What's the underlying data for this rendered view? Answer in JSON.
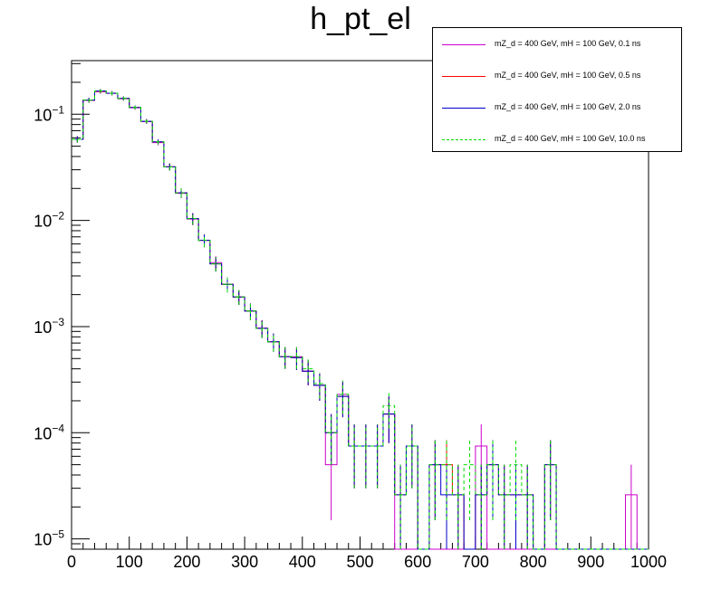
{
  "chart_data": {
    "type": "histogram",
    "title": "h_pt_el",
    "xlabel": "",
    "ylabel": "",
    "xlim": [
      0,
      1000
    ],
    "ylim": [
      8e-06,
      0.32
    ],
    "yscale": "log",
    "bin_width": 20,
    "x_ticks": [
      "0",
      "100",
      "200",
      "300",
      "400",
      "500",
      "600",
      "700",
      "800",
      "900",
      "1000"
    ],
    "y_ticks": [
      {
        "value": 1e-05,
        "mantissa": "10",
        "exp": "−5"
      },
      {
        "value": 0.0001,
        "mantissa": "10",
        "exp": "−4"
      },
      {
        "value": 0.001,
        "mantissa": "10",
        "exp": "−3"
      },
      {
        "value": 0.01,
        "mantissa": "10",
        "exp": "−2"
      },
      {
        "value": 0.1,
        "mantissa": "10",
        "exp": "−1"
      }
    ],
    "legend_position": "top-right",
    "series": [
      {
        "name": "mZ_d = 400 GeV, mH = 100 GeV, 0.1 ns",
        "color": "#cc00cc",
        "dash": "solid",
        "values": [
          0.058,
          0.135,
          0.163,
          0.157,
          0.14,
          0.115,
          0.085,
          0.054,
          0.032,
          0.018,
          0.0103,
          0.0065,
          0.004,
          0.0025,
          0.0019,
          0.0014,
          0.00097,
          0.00072,
          0.00052,
          0.00052,
          0.00038,
          0.00028,
          5e-05,
          0.00023,
          7.5e-05,
          7.5e-05,
          7.5e-05,
          0.00015,
          0,
          0,
          0,
          0,
          0,
          0,
          0,
          7.5e-05,
          0,
          0,
          0,
          0,
          0,
          0,
          0,
          0,
          0,
          0,
          0,
          0,
          2.6e-05,
          0
        ],
        "errors": [
          0.004,
          0.007,
          0.007,
          0.007,
          0.006,
          0.005,
          0.004,
          0.003,
          0.0025,
          0.0018,
          0.0013,
          0.0009,
          0.0006,
          0.0004,
          0.0003,
          0.00025,
          0.00018,
          0.00014,
          0.00012,
          0.00012,
          0.0001,
          8e-05,
          3.5e-05,
          8e-05,
          4.5e-05,
          4.5e-05,
          4.5e-05,
          7e-05,
          0,
          0,
          0,
          0,
          0,
          0,
          0,
          4.5e-05,
          0,
          0,
          0,
          0,
          0,
          0,
          0,
          0,
          0,
          0,
          0,
          0,
          2.4e-05,
          0
        ]
      },
      {
        "name": "mZ_d = 400 GeV, mH = 100 GeV, 0.5 ns",
        "color": "#ff0000",
        "dash": "solid",
        "values": [
          0.058,
          0.136,
          0.165,
          0.158,
          0.141,
          0.116,
          0.086,
          0.055,
          0.032,
          0.0182,
          0.0104,
          0.0065,
          0.0039,
          0.0025,
          0.0019,
          0.0014,
          0.00096,
          0.00072,
          0.00052,
          0.00051,
          0.00038,
          0.00028,
          0.0001,
          0.00022,
          7.5e-05,
          7.5e-05,
          7.5e-05,
          0.00015,
          2.6e-05,
          7.5e-05,
          0,
          5e-05,
          5e-05,
          2.6e-05,
          0,
          2.6e-05,
          5e-05,
          2.6e-05,
          2.6e-05,
          2.6e-05,
          0,
          5e-05,
          0,
          0,
          0,
          0,
          0,
          0,
          0,
          0
        ],
        "errors": [
          0.004,
          0.007,
          0.007,
          0.007,
          0.006,
          0.005,
          0.004,
          0.003,
          0.0025,
          0.0018,
          0.0013,
          0.0009,
          0.0006,
          0.0004,
          0.0003,
          0.00025,
          0.00018,
          0.00014,
          0.00012,
          0.00012,
          0.0001,
          8e-05,
          5e-05,
          8e-05,
          4.5e-05,
          4.5e-05,
          4.5e-05,
          7e-05,
          2.4e-05,
          4.5e-05,
          0,
          3.5e-05,
          3.5e-05,
          2.4e-05,
          0,
          2.4e-05,
          3.5e-05,
          2.4e-05,
          2.4e-05,
          2.4e-05,
          0,
          3.5e-05,
          0,
          0,
          0,
          0,
          0,
          0,
          0,
          0
        ]
      },
      {
        "name": "mZ_d = 400 GeV, mH = 100 GeV, 2.0 ns",
        "color": "#0000cc",
        "dash": "solid",
        "values": [
          0.058,
          0.136,
          0.166,
          0.158,
          0.141,
          0.116,
          0.086,
          0.055,
          0.032,
          0.0182,
          0.0104,
          0.0065,
          0.0039,
          0.0025,
          0.0019,
          0.0014,
          0.00096,
          0.00072,
          0.00052,
          0.00051,
          0.00038,
          0.00028,
          0.0001,
          0.00022,
          7.5e-05,
          7.5e-05,
          7.5e-05,
          0.00015,
          2.6e-05,
          7.5e-05,
          0,
          5e-05,
          2.6e-05,
          2.6e-05,
          0,
          2.6e-05,
          5e-05,
          2.6e-05,
          2.6e-05,
          2.6e-05,
          0,
          5e-05,
          0,
          0,
          0,
          0,
          0,
          0,
          0,
          0
        ],
        "errors": [
          0.004,
          0.007,
          0.007,
          0.007,
          0.006,
          0.005,
          0.004,
          0.003,
          0.0025,
          0.0018,
          0.0013,
          0.0009,
          0.0006,
          0.0004,
          0.0003,
          0.00025,
          0.00018,
          0.00014,
          0.00012,
          0.00012,
          0.0001,
          8e-05,
          5e-05,
          8e-05,
          4.5e-05,
          4.5e-05,
          4.5e-05,
          7e-05,
          2.4e-05,
          4.5e-05,
          0,
          3.5e-05,
          2.4e-05,
          2.4e-05,
          0,
          2.4e-05,
          3.5e-05,
          2.4e-05,
          2.4e-05,
          2.4e-05,
          0,
          3.5e-05,
          0,
          0,
          0,
          0,
          0,
          0,
          0,
          0
        ]
      },
      {
        "name": "mZ_d = 400 GeV, mH = 100 GeV, 10.0 ns",
        "color": "#00dd00",
        "dash": "dashed",
        "values": [
          0.058,
          0.136,
          0.166,
          0.158,
          0.141,
          0.116,
          0.086,
          0.055,
          0.032,
          0.0182,
          0.0104,
          0.0065,
          0.0039,
          0.0025,
          0.0019,
          0.0014,
          0.00096,
          0.00072,
          0.00052,
          0.00052,
          0.0004,
          0.00029,
          0.0001,
          0.00023,
          7.5e-05,
          7.5e-05,
          7.5e-05,
          0.00018,
          2.6e-05,
          7.5e-05,
          0,
          5e-05,
          5e-05,
          2.6e-05,
          5e-05,
          2.6e-05,
          5e-05,
          2.6e-05,
          5e-05,
          2.6e-05,
          0,
          5e-05,
          0,
          0,
          0,
          0,
          0,
          0,
          0,
          0
        ],
        "errors": [
          0.004,
          0.007,
          0.007,
          0.007,
          0.006,
          0.005,
          0.004,
          0.003,
          0.0025,
          0.0018,
          0.0013,
          0.0009,
          0.0006,
          0.0004,
          0.0003,
          0.00025,
          0.00018,
          0.00014,
          0.00012,
          0.00012,
          0.0001,
          8e-05,
          5e-05,
          8e-05,
          4.5e-05,
          4.5e-05,
          4.5e-05,
          7e-05,
          2.4e-05,
          4.5e-05,
          0,
          3.5e-05,
          3.5e-05,
          2.4e-05,
          3.5e-05,
          2.4e-05,
          3.5e-05,
          2.4e-05,
          3.5e-05,
          2.4e-05,
          0,
          3.5e-05,
          0,
          0,
          0,
          0,
          0,
          0,
          0,
          0
        ]
      }
    ]
  }
}
